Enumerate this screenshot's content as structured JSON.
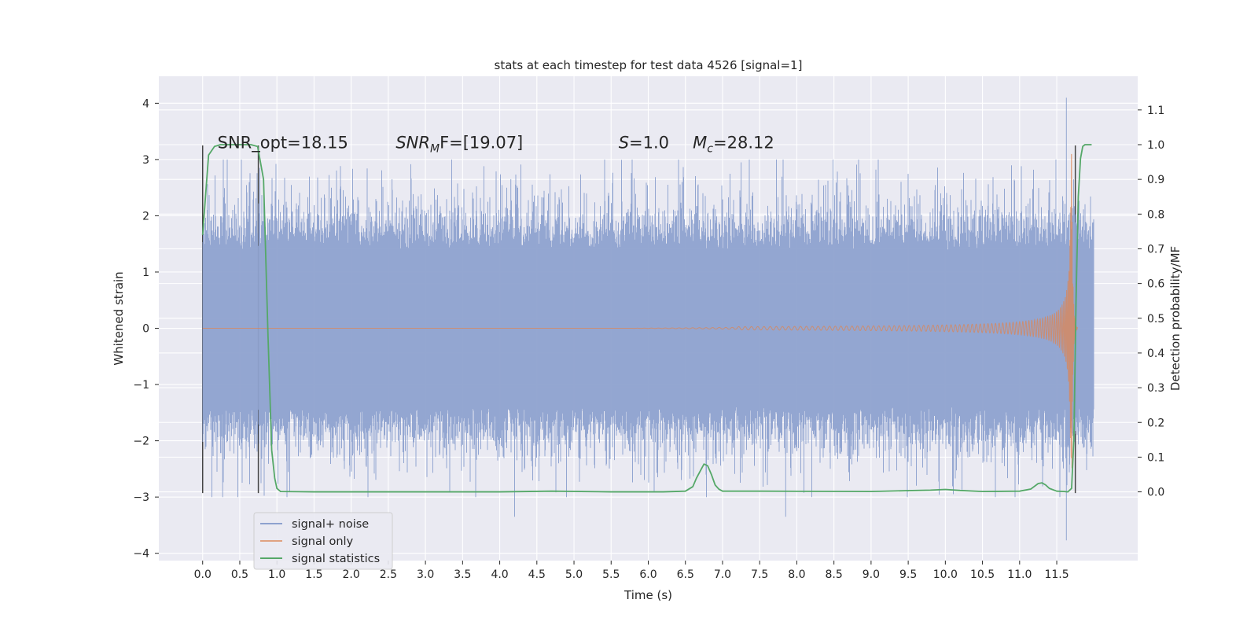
{
  "chart_data": {
    "type": "line",
    "title": "stats at each timestep for test data 4526 [signal=1]",
    "xlabel": "Time (s)",
    "ylabel": "Whitened strain",
    "ylabel_right": "Detection probability/MF",
    "xlim": [
      -0.59,
      12.59
    ],
    "ylim": [
      -4.13,
      4.48
    ],
    "ylim_right": [
      -0.198,
      1.197
    ],
    "x_ticks": [
      "0.0",
      "0.5",
      "1.0",
      "1.5",
      "2.0",
      "2.5",
      "3.0",
      "3.5",
      "4.0",
      "4.5",
      "5.0",
      "5.5",
      "6.0",
      "6.5",
      "7.0",
      "7.5",
      "8.0",
      "8.5",
      "9.0",
      "9.5",
      "10.0",
      "10.5",
      "11.0",
      "11.5"
    ],
    "y_ticks": [
      "4",
      "3",
      "2",
      "1",
      "0",
      "−1",
      "−2",
      "−3",
      "−4"
    ],
    "y_ticks_right": [
      "1.1",
      "1.0",
      "0.9",
      "0.8",
      "0.7",
      "0.6",
      "0.5",
      "0.4",
      "0.3",
      "0.2",
      "0.1",
      "0.0"
    ],
    "grid": true,
    "legend_position": "lower-left",
    "annotations": [
      {
        "text": "SNR_opt=18.15",
        "x": 0.2,
        "y": 3.2
      },
      {
        "text_parts": [
          [
            "SNR",
            "i"
          ],
          [
            "M",
            "sub-i"
          ],
          [
            "F=[19.07]",
            "i-partial"
          ]
        ],
        "x": 2.6,
        "y": 3.2
      },
      {
        "text_parts": [
          [
            "S",
            "i"
          ],
          [
            "=1.0",
            ""
          ]
        ],
        "x": 5.6,
        "y": 3.2
      },
      {
        "text_parts": [
          [
            "M",
            "i"
          ],
          [
            "c",
            "sub-i"
          ],
          [
            "=28.12",
            ""
          ]
        ],
        "x": 6.6,
        "y": 3.2
      }
    ],
    "vertical_markers": [
      {
        "x": 0.0,
        "y_range": [
          -2.93,
          3.25
        ],
        "color": "#444444"
      },
      {
        "x": 0.75,
        "y_range": [
          -2.93,
          3.25
        ],
        "color": "#444444"
      },
      {
        "x": 11.75,
        "y_range": [
          -2.93,
          3.25
        ],
        "color": "#444444"
      }
    ],
    "series": [
      {
        "name": "signal+ noise",
        "color": "#8ea2cf",
        "x_range": [
          0.0,
          12.0
        ],
        "typical_band": [
          -1.4,
          1.4
        ],
        "peak_band": [
          -3.0,
          3.0
        ],
        "extremes": [
          {
            "x": 0.27,
            "y": -3.0
          },
          {
            "x": 4.2,
            "y": -3.35
          },
          {
            "x": 7.85,
            "y": -3.35
          },
          {
            "x": 7.25,
            "y": 2.95
          },
          {
            "x": 11.63,
            "y": 4.1
          },
          {
            "x": 11.63,
            "y": -3.77
          },
          {
            "x": 0.77,
            "y": 2.85
          },
          {
            "x": 2.55,
            "y": 2.65
          },
          {
            "x": 4.15,
            "y": 2.65
          }
        ]
      },
      {
        "name": "signal only",
        "color": "#dd8452",
        "type": "chirp",
        "x_range": [
          0.0,
          11.78
        ],
        "merger_time": 11.7,
        "peak_amplitude": 3.15,
        "amplitude_at_7s": 0.03,
        "amplitude_at_11s": 0.22
      },
      {
        "name": "signal statistics",
        "color": "#55a868",
        "axis": "right",
        "x": [
          0.0,
          0.08,
          0.16,
          0.24,
          0.32,
          0.5,
          0.65,
          0.74,
          0.82,
          0.88,
          0.93,
          0.97,
          1.0,
          1.05,
          1.5,
          4.0,
          4.7,
          5.5,
          6.2,
          6.5,
          6.6,
          6.65,
          6.7,
          6.75,
          6.8,
          6.85,
          6.9,
          6.95,
          7.0,
          7.5,
          9.0,
          9.8,
          10.0,
          10.2,
          10.5,
          11.0,
          11.15,
          11.25,
          11.3,
          11.35,
          11.4,
          11.5,
          11.6,
          11.65,
          11.7,
          11.73,
          11.76,
          11.79,
          11.82,
          11.85,
          11.88,
          11.92,
          11.97
        ],
        "y": [
          0.74,
          0.97,
          0.995,
          1.0,
          1.0,
          1.0,
          1.0,
          0.995,
          0.9,
          0.45,
          0.12,
          0.04,
          0.01,
          0.001,
          0.0,
          0.0,
          0.002,
          0.0,
          0.0,
          0.002,
          0.015,
          0.04,
          0.06,
          0.08,
          0.075,
          0.05,
          0.02,
          0.008,
          0.002,
          0.002,
          0.001,
          0.005,
          0.007,
          0.004,
          0.001,
          0.002,
          0.008,
          0.024,
          0.026,
          0.02,
          0.01,
          0.002,
          0.001,
          0.0,
          0.01,
          0.15,
          0.55,
          0.85,
          0.96,
          0.995,
          1.0,
          1.0,
          1.0
        ]
      }
    ]
  }
}
